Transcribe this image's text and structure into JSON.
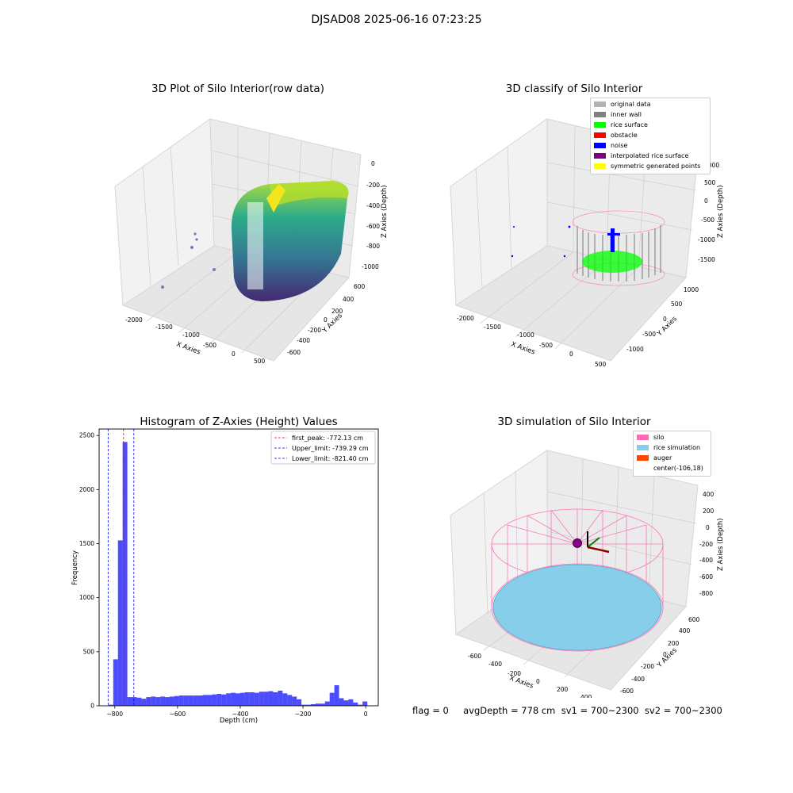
{
  "figure": {
    "title": "DJSAD08 2025-06-16 07:23:25",
    "footer": "flag = 0     avgDepth = 778 cm  sv1 = 700~2300  sv2 = 700~2300"
  },
  "panels": {
    "raw": {
      "title": "3D Plot of Silo Interior(row data)",
      "xlabel": "X Axies",
      "ylabel": "Y Axies",
      "zlabel": "Z Axies (Depth)",
      "xticks": [
        "-2000",
        "-1500",
        "-1000",
        "-500",
        "0",
        "500"
      ],
      "yticks": [
        "600",
        "400",
        "200",
        "0",
        "-200",
        "-400",
        "-600"
      ],
      "zticks": [
        "0",
        "-200",
        "-400",
        "-600",
        "-800",
        "-1000"
      ]
    },
    "classify": {
      "title": "3D classify of Silo Interior",
      "xlabel": "X Axies",
      "ylabel": "Y Axies",
      "zlabel": "Z Axies (Depth)",
      "xticks": [
        "-2000",
        "-1500",
        "-1000",
        "-500",
        "0",
        "500"
      ],
      "yticks": [
        "1000",
        "500",
        "0",
        "-500",
        "-1000"
      ],
      "zticks": [
        "1000",
        "500",
        "0",
        "-500",
        "-1000",
        "-1500"
      ],
      "legend": [
        {
          "label": "original data",
          "color": "#b3b3b3"
        },
        {
          "label": "inner wall",
          "color": "#808080"
        },
        {
          "label": "rice surface",
          "color": "#00ff00"
        },
        {
          "label": "obstacle",
          "color": "#ff0000"
        },
        {
          "label": "noise",
          "color": "#0000ff"
        },
        {
          "label": "interpolated rice surface",
          "color": "#800080"
        },
        {
          "label": "symmetric generated points",
          "color": "#ffff00"
        }
      ]
    },
    "simulation": {
      "title": "3D simulation of Silo Interior",
      "xlabel": "X Axies",
      "ylabel": "Y Axies",
      "zlabel": "Z Axies (Depth)",
      "xticks": [
        "-600",
        "-400",
        "-200",
        "0",
        "200",
        "400"
      ],
      "yticks": [
        "600",
        "400",
        "200",
        "0",
        "-200",
        "-400",
        "-600"
      ],
      "zticks": [
        "400",
        "200",
        "0",
        "-200",
        "-400",
        "-600",
        "-800"
      ],
      "legend": [
        {
          "label": "silo",
          "color": "#ff69b4"
        },
        {
          "label": "rice simulation",
          "color": "#87ceeb"
        },
        {
          "label": "auger",
          "color": "#ff4500"
        },
        {
          "label": "center(-106,18)",
          "color": "none"
        }
      ]
    }
  },
  "chart_data": {
    "type": "bar",
    "title": "Histogram of Z-Axies (Height) Values",
    "xlabel": "Depth (cm)",
    "ylabel": "Frequency",
    "xlim": [
      -850,
      40
    ],
    "ylim": [
      0,
      2560
    ],
    "xticks": [
      -800,
      -600,
      -400,
      -200,
      0
    ],
    "yticks": [
      0,
      500,
      1000,
      1500,
      2000,
      2500
    ],
    "bin_width": 15,
    "bin_starts": [
      -820,
      -805,
      -790,
      -775,
      -760,
      -745,
      -730,
      -715,
      -700,
      -685,
      -670,
      -655,
      -640,
      -625,
      -610,
      -595,
      -580,
      -565,
      -550,
      -535,
      -520,
      -505,
      -490,
      -475,
      -460,
      -445,
      -430,
      -415,
      -400,
      -385,
      -370,
      -355,
      -340,
      -325,
      -310,
      -295,
      -280,
      -265,
      -250,
      -235,
      -220,
      -205,
      -190,
      -175,
      -160,
      -145,
      -130,
      -115,
      -100,
      -85,
      -70,
      -55,
      -40,
      -25,
      -10,
      5
    ],
    "counts": [
      10,
      430,
      1530,
      2440,
      80,
      80,
      75,
      65,
      80,
      85,
      80,
      85,
      80,
      85,
      90,
      95,
      95,
      95,
      95,
      95,
      100,
      100,
      105,
      110,
      105,
      115,
      120,
      115,
      120,
      125,
      125,
      120,
      130,
      130,
      135,
      125,
      140,
      115,
      100,
      85,
      60,
      10,
      10,
      15,
      20,
      20,
      40,
      120,
      190,
      70,
      50,
      60,
      30,
      10,
      40,
      0
    ],
    "color": "#0000ff",
    "vlines": [
      {
        "label": "first_peak: -772.13 cm",
        "x": -772.13,
        "color": "#ff0000"
      },
      {
        "label": "Upper_limit: -739.29 cm",
        "x": -739.29,
        "color": "#0000ff"
      },
      {
        "label": "Lower_limit: -821.40 cm",
        "x": -821.4,
        "color": "#0000ff"
      }
    ]
  }
}
